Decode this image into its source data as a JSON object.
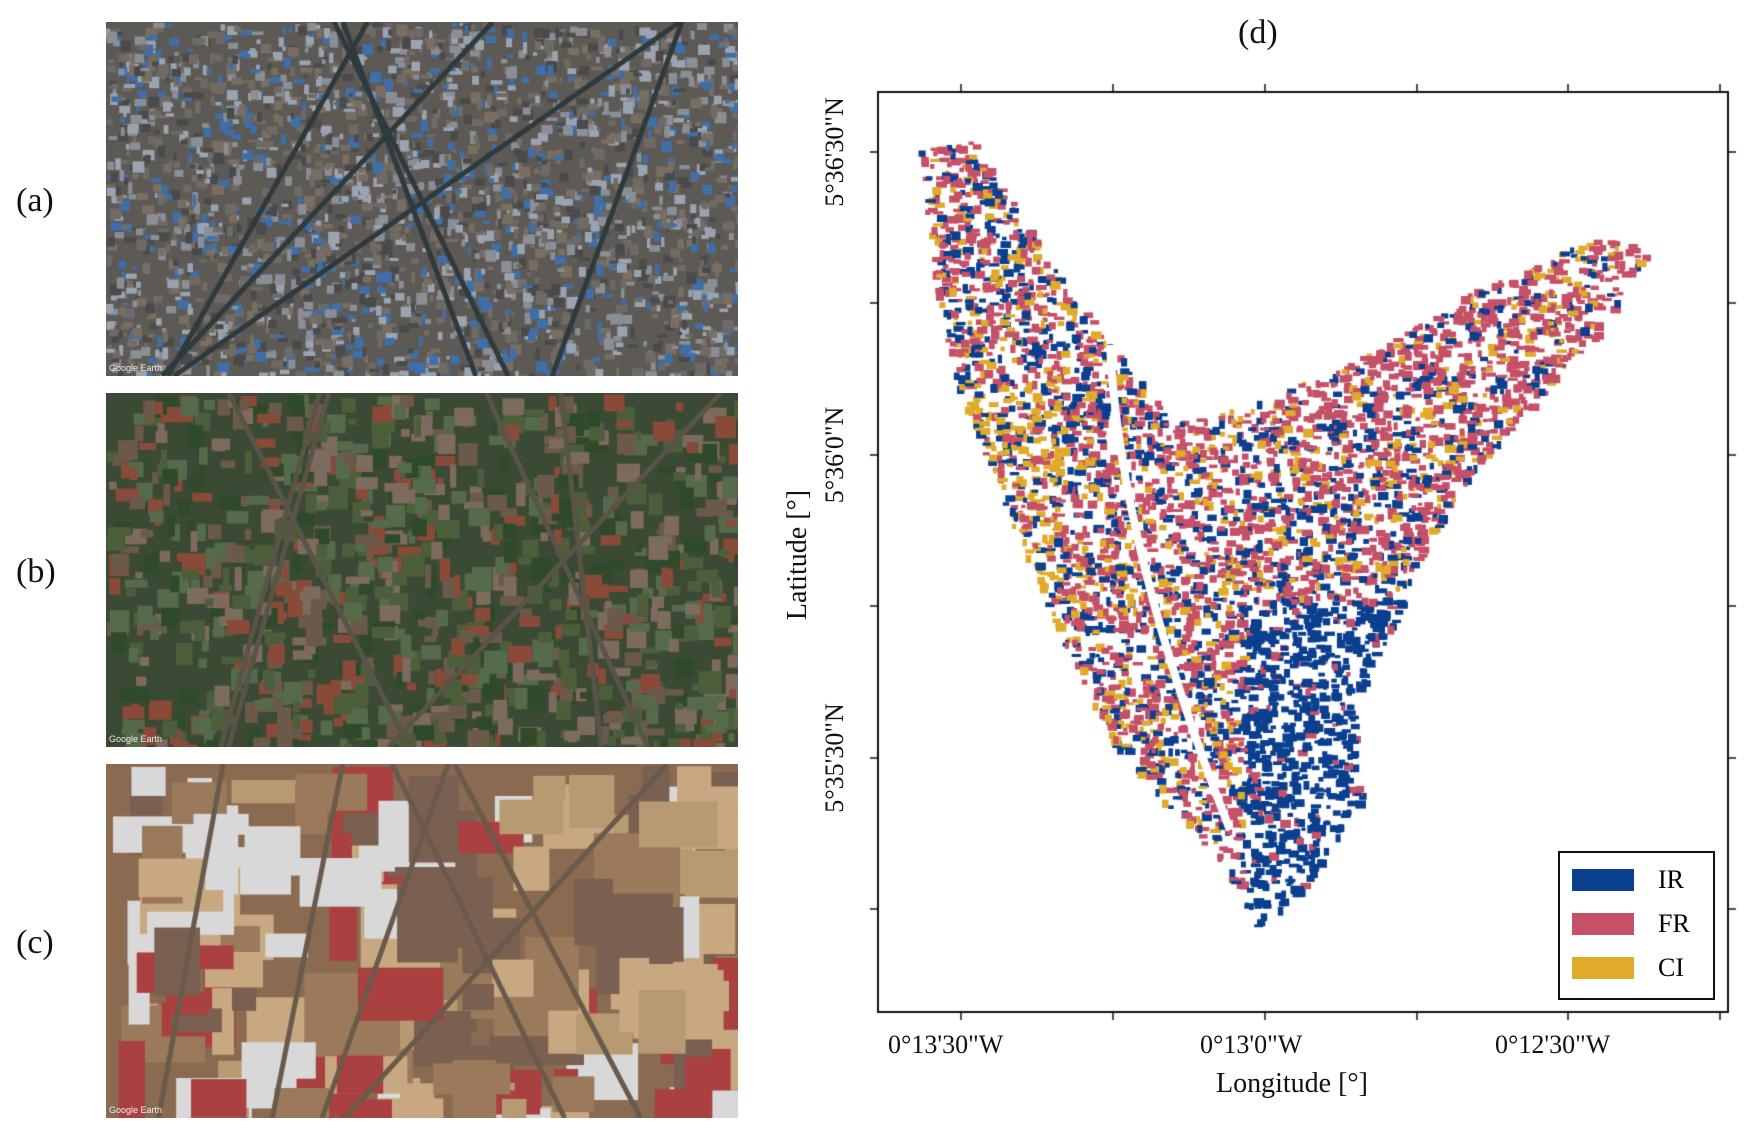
{
  "panels": [
    {
      "label": "(a)",
      "watermark": "Google Earth"
    },
    {
      "label": "(b)",
      "watermark": "Google Earth"
    },
    {
      "label": "(c)",
      "watermark": "Google Earth"
    }
  ],
  "map": {
    "title": "(d)",
    "xlabel": "Longitude [°]",
    "ylabel": "Latitude [°]",
    "xticks": [
      "0°13'30\"W",
      "0°13'0\"W",
      "0°12'30\"W"
    ],
    "yticks": [
      "5°36'30\"N",
      "5°36'0\"N",
      "5°35'30\"N"
    ],
    "legend": [
      {
        "label": "IR",
        "color": "#0b3f8f"
      },
      {
        "label": "FR",
        "color": "#c55068"
      },
      {
        "label": "CI",
        "color": "#e0aa2a"
      }
    ]
  }
}
